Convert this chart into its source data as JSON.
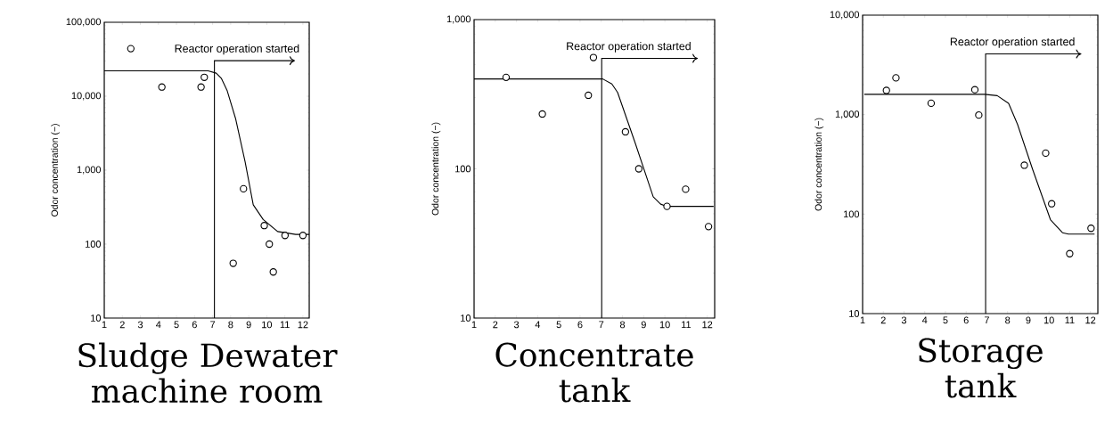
{
  "chart_data": [
    {
      "type": "scatter",
      "title": "Sludge Dewater machine room",
      "ylabel": "Odor concentration  (−)",
      "log": "y",
      "xlim": [
        1,
        12.35
      ],
      "ylim": [
        10,
        100000
      ],
      "xticks": [
        1,
        2,
        3,
        4,
        5,
        6,
        7,
        8,
        9,
        10,
        11,
        12
      ],
      "yticks": [
        10,
        100,
        {
          "value": 1000,
          "label": "1,000"
        },
        {
          "value": 10000,
          "label": "10,000"
        },
        {
          "value": 100000,
          "label": "100,000"
        }
      ],
      "ref_lines": [
        {
          "axis": "x",
          "value": 7.1,
          "label": "Reactor operation started"
        }
      ],
      "series": [
        {
          "marker": "circle",
          "color": "#000000",
          "x": [
            2.47,
            4.19,
            6.36,
            6.54,
            8.14,
            8.71,
            9.86,
            10.14,
            10.36,
            11.01,
            12.0
          ],
          "values": [
            44000,
            13300,
            13300,
            18000,
            55,
            560,
            178,
            100,
            42,
            131,
            131
          ]
        },
        {
          "type": "line",
          "marker": "none",
          "color": "#000000",
          "x": [
            1,
            6.75,
            7.2,
            7.48,
            7.8,
            8.27,
            8.8,
            9.25,
            9.8,
            10.6,
            11.6,
            12.35
          ],
          "values": [
            22000,
            22000,
            20500,
            17500,
            12000,
            5000,
            1300,
            340,
            215,
            148,
            135,
            135
          ]
        }
      ]
    },
    {
      "type": "scatter",
      "title": "Concentrate tank",
      "ylabel": "Odor concentration  (−)",
      "log": "y",
      "xlim": [
        1,
        12.35
      ],
      "ylim": [
        10,
        1000
      ],
      "xticks": [
        1,
        2,
        3,
        4,
        5,
        6,
        7,
        8,
        9,
        10,
        11,
        12
      ],
      "yticks": [
        10,
        100,
        {
          "value": 1000,
          "label": "1,000"
        }
      ],
      "ref_lines": [
        {
          "axis": "x",
          "value": 7.02,
          "label": "Reactor operation started"
        }
      ],
      "series": [
        {
          "marker": "circle",
          "color": "#000000",
          "x": [
            2.51,
            4.22,
            6.39,
            6.63,
            8.14,
            8.77,
            10.1,
            10.98,
            12.06
          ],
          "values": [
            410,
            233,
            311,
            557,
            177,
            100,
            56,
            73,
            41
          ]
        },
        {
          "type": "line",
          "marker": "none",
          "color": "#000000",
          "x": [
            1,
            7.07,
            7.5,
            7.77,
            8.6,
            9.45,
            9.8,
            10.1,
            12.3
          ],
          "values": [
            400,
            400,
            370,
            325,
            149,
            65,
            58,
            56,
            56
          ]
        }
      ]
    },
    {
      "type": "scatter",
      "title": "Storage tank",
      "ylabel": "Odor concentration  (−)",
      "log": "y",
      "xlim": [
        1,
        12.36
      ],
      "ylim": [
        10,
        10000
      ],
      "xticks": [
        1,
        2,
        3,
        4,
        5,
        6,
        7,
        8,
        9,
        10,
        11,
        12
      ],
      "yticks": [
        10,
        100,
        {
          "value": 1000,
          "label": "1,000"
        },
        {
          "value": 10000,
          "label": "10,000"
        }
      ],
      "ref_lines": [
        {
          "axis": "x",
          "value": 6.94,
          "label": "Reactor operation started"
        }
      ],
      "series": [
        {
          "marker": "circle",
          "color": "#000000",
          "x": [
            2.15,
            2.61,
            4.31,
            6.42,
            6.61,
            8.81,
            9.84,
            10.13,
            11.0,
            12.03
          ],
          "values": [
            1750,
            2340,
            1300,
            1780,
            990,
            310,
            410,
            127,
            40,
            72
          ]
        },
        {
          "type": "line",
          "marker": "none",
          "color": "#000000",
          "x": [
            1.08,
            6.9,
            7.5,
            8.05,
            8.48,
            9.2,
            10.07,
            10.65,
            10.94,
            12.2
          ],
          "values": [
            1600,
            1600,
            1550,
            1300,
            800,
            285,
            88,
            65,
            63,
            63
          ]
        }
      ]
    }
  ]
}
